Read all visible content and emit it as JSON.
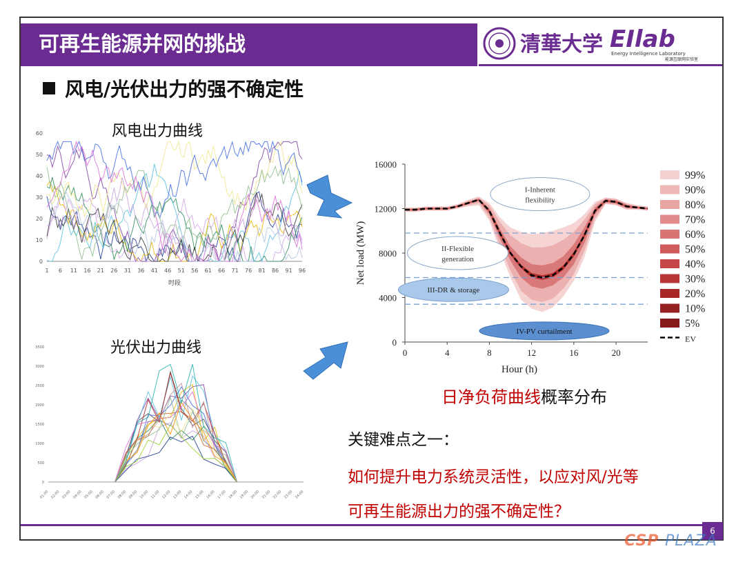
{
  "header": {
    "title": "可再生能源并网的挑战",
    "logo_school": "清華大学",
    "logo_lab": "EIlab",
    "logo_lab_sub": "Energy Intelligence Laboratory",
    "logo_lab_sub_cn": "能源互联网实验室"
  },
  "bullet": {
    "text": "风电/光伏出力的强不确定性"
  },
  "wind_chart": {
    "label": "风电出力曲线",
    "y_ticks": [
      "60",
      "50",
      "40",
      "30",
      "20",
      "10",
      "0"
    ],
    "x_ticks": [
      "1",
      "6",
      "11",
      "16",
      "21",
      "26",
      "31",
      "36",
      "41",
      "46",
      "51",
      "56",
      "61",
      "66",
      "71",
      "76",
      "81",
      "86",
      "91",
      "96"
    ],
    "x_label": "时段"
  },
  "pv_chart": {
    "label": "光伏出力曲线",
    "y_ticks": [
      "3500",
      "3000",
      "2500",
      "2000",
      "1500",
      "1000",
      "500",
      "0"
    ],
    "x_ticks": [
      "01:00",
      "02:00",
      "03:00",
      "04:00",
      "05:00",
      "06:00",
      "07:00",
      "08:00",
      "09:00",
      "10:00",
      "11:00",
      "12:00",
      "13:00",
      "14:00",
      "15:00",
      "16:00",
      "17:00",
      "18:00",
      "19:00",
      "20:00",
      "21:00",
      "22:00",
      "23:00",
      "24:00"
    ]
  },
  "chart_data": {
    "type": "area",
    "xlabel": "Hour (h)",
    "ylabel": "Net load (MW)",
    "x_ticks": [
      "0",
      "4",
      "8",
      "12",
      "16",
      "20"
    ],
    "y_ticks": [
      "16000",
      "12000",
      "8000",
      "4000",
      "0"
    ],
    "xlim": [
      0,
      23
    ],
    "ylim": [
      0,
      16000
    ],
    "x": [
      0,
      1,
      2,
      3,
      4,
      5,
      6,
      7,
      8,
      9,
      10,
      11,
      12,
      13,
      14,
      15,
      16,
      17,
      18,
      19,
      20,
      21,
      22,
      23
    ],
    "ev": [
      11900,
      11900,
      12000,
      12000,
      12000,
      12200,
      12500,
      12800,
      11800,
      9800,
      8000,
      6800,
      6000,
      5800,
      6000,
      6700,
      7900,
      9600,
      11800,
      12700,
      12600,
      12200,
      12100,
      12000
    ],
    "bands": [
      {
        "name": "99%",
        "upper": [
          12100,
          12100,
          12200,
          12200,
          12200,
          12400,
          12800,
          13100,
          12500,
          11200,
          10300,
          9900,
          9700,
          9800,
          10000,
          10300,
          10700,
          11500,
          12600,
          13000,
          12900,
          12500,
          12300,
          12200
        ],
        "lower": [
          11700,
          11700,
          11800,
          11800,
          11800,
          12000,
          12200,
          12300,
          10900,
          8200,
          5800,
          3800,
          3000,
          2700,
          3100,
          4100,
          5500,
          7600,
          10800,
          12400,
          12300,
          11900,
          11900,
          11800
        ]
      },
      {
        "name": "90%",
        "upper": [
          12050,
          12050,
          12150,
          12150,
          12150,
          12350,
          12700,
          13000,
          12300,
          10800,
          9600,
          8900,
          8500,
          8500,
          8700,
          9200,
          9900,
          11000,
          12400,
          12950,
          12850,
          12450,
          12250,
          12150
        ],
        "lower": [
          11750,
          11750,
          11850,
          11850,
          11850,
          12050,
          12300,
          12500,
          11200,
          8700,
          6400,
          4600,
          3800,
          3600,
          3900,
          4800,
          6100,
          8200,
          11100,
          12450,
          12350,
          11950,
          11950,
          11850
        ]
      },
      {
        "name": "50%",
        "upper": [
          11980,
          11980,
          12080,
          12080,
          12080,
          12280,
          12600,
          12900,
          12000,
          10200,
          8600,
          7600,
          7000,
          6900,
          7100,
          7700,
          8800,
          10300,
          12100,
          12850,
          12750,
          12350,
          12180,
          12080
        ],
        "lower": [
          11820,
          11820,
          11920,
          11920,
          11920,
          12120,
          12400,
          12700,
          11500,
          9300,
          7300,
          5800,
          5000,
          4800,
          5100,
          5800,
          7000,
          8900,
          11500,
          12550,
          12450,
          12050,
          12020,
          11920
        ]
      },
      {
        "name": "10%",
        "upper": [
          11920,
          11920,
          12020,
          12020,
          12020,
          12220,
          12530,
          12830,
          11850,
          9900,
          8150,
          6950,
          6200,
          6000,
          6200,
          6900,
          8100,
          9750,
          11880,
          12740,
          12640,
          12240,
          12120,
          12020
        ],
        "lower": [
          11880,
          11880,
          11980,
          11980,
          11980,
          12180,
          12470,
          12770,
          11750,
          9700,
          7850,
          6650,
          5800,
          5600,
          5800,
          6500,
          7700,
          9450,
          11720,
          12660,
          12560,
          12160,
          12080,
          11980
        ]
      }
    ],
    "legend": [
      "99%",
      "90%",
      "80%",
      "70%",
      "60%",
      "50%",
      "40%",
      "30%",
      "20%",
      "10%",
      "5%",
      "EV"
    ],
    "legend_colors": [
      "#f5d0d0",
      "#eeb8b8",
      "#e8a3a3",
      "#e08c8c",
      "#d87474",
      "#cf5b5b",
      "#c54747",
      "#b93535",
      "#a82828",
      "#952020",
      "#851818",
      "#000000"
    ],
    "dashed_levels": [
      9800,
      5800,
      3400
    ],
    "flex_regions": [
      {
        "label": "I-Inherent",
        "label2": "flexibility"
      },
      {
        "label": "II-Flexible",
        "label2": "generation"
      },
      {
        "label": "III-DR  & storage"
      },
      {
        "label": "IV-PV curtailment"
      }
    ]
  },
  "caption": {
    "red": "日净负荷曲线",
    "black": "概率分布"
  },
  "key": {
    "title": "关键难点之一：",
    "line1": "如何提升电力系统灵活性，以应对风/光等",
    "line2": "可再生能源出力的强不确定性？"
  },
  "footer": {
    "page": "6",
    "watermark_a": "CSP",
    "watermark_b": "PLAZA"
  },
  "colors": {
    "title_bg": "#6a2c91",
    "accent_red": "#c00000",
    "arrow_blue": "#4a90d9"
  }
}
